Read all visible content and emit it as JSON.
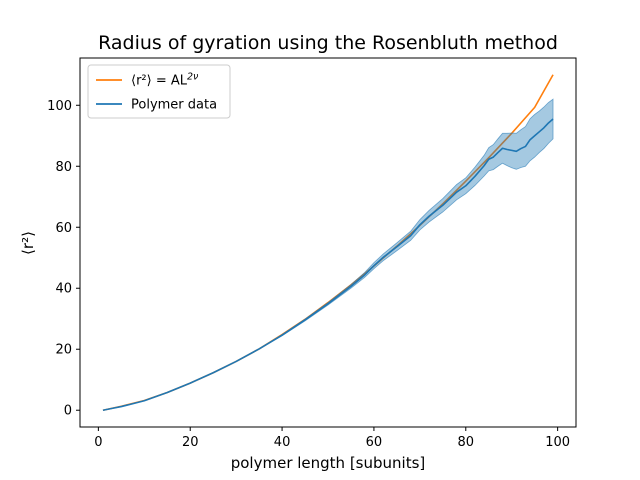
{
  "chart_data": {
    "type": "line",
    "title": "Radius of gyration using the Rosenbluth method",
    "xlabel": "polymer length [subunits]",
    "ylabel": "⟨r²⟩",
    "xlim": [
      -4,
      104
    ],
    "ylim": [
      -5.5,
      115.5
    ],
    "xticks": [
      0,
      20,
      40,
      60,
      80,
      100
    ],
    "yticks": [
      0,
      20,
      40,
      60,
      80,
      100
    ],
    "grid": false,
    "legend_position": "upper-left",
    "series": [
      {
        "name": "⟨r²⟩ = AL^{2ν}",
        "legend_label": {
          "main": "⟨r²⟩ = AL",
          "sup": "2ν"
        },
        "kind": "fit",
        "color": "#ff7f0e",
        "x": [
          1,
          5,
          10,
          15,
          20,
          25,
          30,
          35,
          40,
          45,
          50,
          55,
          60,
          65,
          70,
          75,
          80,
          85,
          90,
          95,
          99
        ],
        "y": [
          0.0,
          1.3,
          3.2,
          5.8,
          8.9,
          12.3,
          16.0,
          20.1,
          24.8,
          29.8,
          35.3,
          41.1,
          47.3,
          53.8,
          60.6,
          67.7,
          75.1,
          82.8,
          90.8,
          99.3,
          110.0
        ]
      },
      {
        "name": "Polymer data",
        "legend_label": {
          "main": "Polymer data",
          "sup": ""
        },
        "kind": "data",
        "color": "#1f77b4",
        "band_color": "#1f77b4",
        "x": [
          1,
          3,
          5,
          10,
          15,
          20,
          25,
          30,
          35,
          40,
          45,
          50,
          55,
          58,
          60,
          62,
          65,
          68,
          70,
          72,
          75,
          78,
          80,
          82,
          84,
          85,
          86,
          87,
          88,
          89,
          90,
          91,
          92,
          93,
          94,
          95,
          96,
          97,
          98,
          99
        ],
        "y": [
          0.0,
          0.6,
          1.2,
          3.1,
          5.8,
          8.9,
          12.3,
          16.0,
          20.1,
          24.6,
          29.6,
          34.9,
          40.6,
          44.4,
          47.4,
          50.1,
          53.6,
          57.2,
          60.8,
          63.6,
          67.2,
          71.5,
          73.6,
          76.7,
          80.2,
          82.3,
          83.0,
          84.5,
          85.9,
          85.5,
          85.2,
          84.9,
          85.8,
          86.5,
          88.7,
          90.0,
          91.3,
          92.6,
          94.2,
          95.5
        ],
        "lower": [
          0.0,
          0.6,
          1.2,
          3.1,
          5.8,
          8.9,
          12.3,
          16.0,
          20.1,
          24.4,
          29.3,
          34.5,
          40.0,
          43.6,
          46.4,
          49.0,
          52.3,
          55.7,
          59.1,
          61.7,
          65.0,
          69.0,
          71.0,
          73.7,
          76.8,
          78.5,
          78.9,
          80.0,
          81.0,
          80.2,
          79.5,
          79.0,
          79.6,
          80.0,
          81.8,
          83.0,
          84.5,
          85.8,
          87.5,
          89.0
        ],
        "upper": [
          0.0,
          0.6,
          1.2,
          3.1,
          5.8,
          8.9,
          12.3,
          16.0,
          20.1,
          24.8,
          29.9,
          35.3,
          41.2,
          45.2,
          48.4,
          51.2,
          54.9,
          58.7,
          62.5,
          65.5,
          69.4,
          74.0,
          76.2,
          79.7,
          83.6,
          86.1,
          87.1,
          89.0,
          90.8,
          90.8,
          90.9,
          90.8,
          92.0,
          93.0,
          95.6,
          97.0,
          98.1,
          99.4,
          100.9,
          102.0
        ]
      }
    ]
  }
}
